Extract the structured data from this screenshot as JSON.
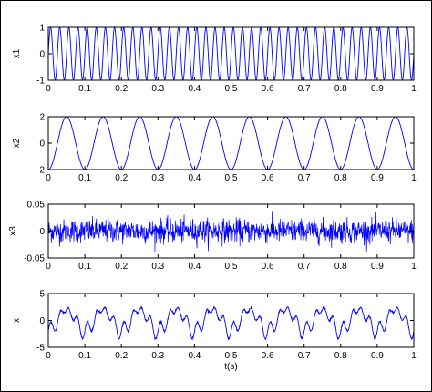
{
  "figure": {
    "xlabel": "t(s)",
    "line_color": "#0000ff"
  },
  "chart_data": [
    {
      "type": "line",
      "ylabel": "x1",
      "xlim": [
        0,
        1
      ],
      "ylim": [
        -1,
        1
      ],
      "xticks": [
        "0",
        "0.1",
        "0.2",
        "0.3",
        "0.4",
        "0.5",
        "0.6",
        "0.7",
        "0.8",
        "0.9",
        "1"
      ],
      "yticks": [
        "-1",
        "0",
        "1"
      ],
      "series": [
        {
          "signal": "sine",
          "amplitude": 1,
          "frequency_hz": 40
        }
      ]
    },
    {
      "type": "line",
      "ylabel": "x2",
      "xlim": [
        0,
        1
      ],
      "ylim": [
        -2,
        2
      ],
      "xticks": [
        "0",
        "0.1",
        "0.2",
        "0.3",
        "0.4",
        "0.5",
        "0.6",
        "0.7",
        "0.8",
        "0.9",
        "1"
      ],
      "yticks": [
        "-2",
        "0",
        "2"
      ],
      "series": [
        {
          "signal": "sine",
          "amplitude": 2,
          "frequency_hz": 10
        }
      ]
    },
    {
      "type": "line",
      "ylabel": "x3",
      "xlim": [
        0,
        1
      ],
      "ylim": [
        -0.05,
        0.05
      ],
      "xticks": [
        "0",
        "0.1",
        "0.2",
        "0.3",
        "0.4",
        "0.5",
        "0.6",
        "0.7",
        "0.8",
        "0.9",
        "1"
      ],
      "yticks": [
        "-0.05",
        "0",
        "0.05"
      ],
      "series": [
        {
          "signal": "noise",
          "amplitude": 0.02
        }
      ]
    },
    {
      "type": "line",
      "ylabel": "x",
      "xlabel": "t(s)",
      "xlim": [
        0,
        1
      ],
      "ylim": [
        -5,
        5
      ],
      "xticks": [
        "0",
        "0.1",
        "0.2",
        "0.3",
        "0.4",
        "0.5",
        "0.6",
        "0.7",
        "0.8",
        "0.9",
        "1"
      ],
      "yticks": [
        "-5",
        "0",
        "5"
      ],
      "series": [
        {
          "signal": "sum",
          "components": [
            "x1",
            "x2",
            "x3"
          ]
        }
      ]
    }
  ]
}
